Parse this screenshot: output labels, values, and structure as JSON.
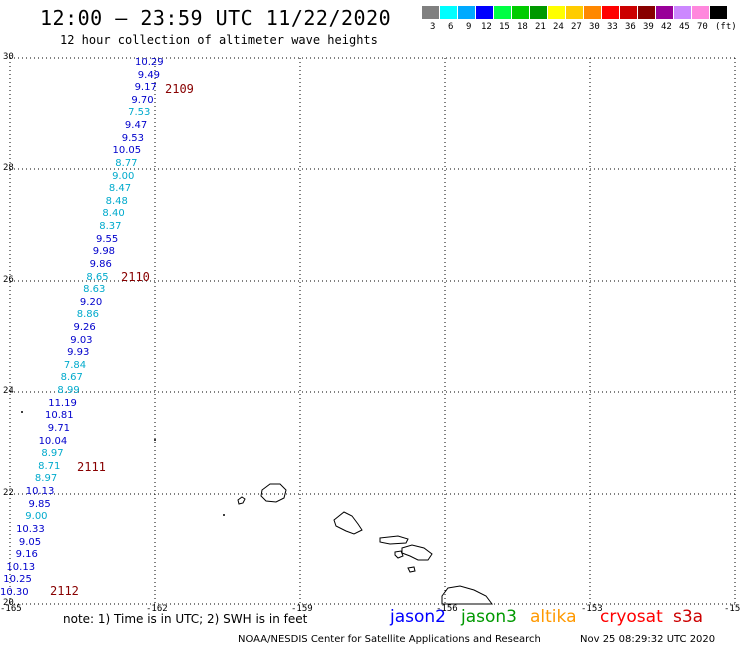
{
  "title": "12:00 – 23:59 UTC 11/22/2020",
  "subtitle": "12 hour collection of altimeter wave heights",
  "legend": {
    "unit": "(ft)",
    "bins": [
      {
        "label": "3",
        "color": "#808080"
      },
      {
        "label": "6",
        "color": "#00ffff"
      },
      {
        "label": "9",
        "color": "#00aaff"
      },
      {
        "label": "12",
        "color": "#0000ff"
      },
      {
        "label": "15",
        "color": "#00ff44"
      },
      {
        "label": "18",
        "color": "#00cc00"
      },
      {
        "label": "21",
        "color": "#009900"
      },
      {
        "label": "24",
        "color": "#ffff00"
      },
      {
        "label": "27",
        "color": "#ffcc00"
      },
      {
        "label": "30",
        "color": "#ff8800"
      },
      {
        "label": "33",
        "color": "#ff0000"
      },
      {
        "label": "36",
        "color": "#cc0000"
      },
      {
        "label": "39",
        "color": "#880000"
      },
      {
        "label": "42",
        "color": "#990099"
      },
      {
        "label": "45",
        "color": "#cc88ff"
      },
      {
        "label": "70",
        "color": "#ff88dd"
      },
      {
        "label": "",
        "color": "#000000"
      }
    ]
  },
  "map": {
    "lat_labels": [
      "30",
      "28",
      "26",
      "24",
      "22",
      "20"
    ],
    "lon_labels": [
      "-165",
      "-162",
      "-159",
      "-156",
      "-153",
      "-15"
    ],
    "lat_range": [
      20,
      30
    ],
    "lon_range": [
      -165,
      -150
    ]
  },
  "passes": [
    {
      "label": "2109",
      "color": "#880000"
    },
    {
      "label": "2110",
      "color": "#880000"
    },
    {
      "label": "2111",
      "color": "#880000"
    },
    {
      "label": "2112",
      "color": "#880000"
    }
  ],
  "observations": [
    {
      "value": "10.29",
      "color": "#0000cc"
    },
    {
      "value": "9.49",
      "color": "#0000cc"
    },
    {
      "value": "9.17",
      "color": "#0000cc"
    },
    {
      "value": "9.70",
      "color": "#0000cc"
    },
    {
      "value": "7.53",
      "color": "#00aacc"
    },
    {
      "value": "9.47",
      "color": "#0000cc"
    },
    {
      "value": "9.53",
      "color": "#0000cc"
    },
    {
      "value": "10.05",
      "color": "#0000cc"
    },
    {
      "value": "8.77",
      "color": "#00aacc"
    },
    {
      "value": "9.00",
      "color": "#00aacc"
    },
    {
      "value": "8.47",
      "color": "#00aacc"
    },
    {
      "value": "8.48",
      "color": "#00aacc"
    },
    {
      "value": "8.40",
      "color": "#00aacc"
    },
    {
      "value": "8.37",
      "color": "#00aacc"
    },
    {
      "value": "9.55",
      "color": "#0000cc"
    },
    {
      "value": "9.98",
      "color": "#0000cc"
    },
    {
      "value": "9.86",
      "color": "#0000cc"
    },
    {
      "value": "8.65",
      "color": "#00aacc"
    },
    {
      "value": "8.63",
      "color": "#00aacc"
    },
    {
      "value": "9.20",
      "color": "#0000cc"
    },
    {
      "value": "8.86",
      "color": "#00aacc"
    },
    {
      "value": "9.26",
      "color": "#0000cc"
    },
    {
      "value": "9.03",
      "color": "#0000cc"
    },
    {
      "value": "9.93",
      "color": "#0000cc"
    },
    {
      "value": "7.84",
      "color": "#00aacc"
    },
    {
      "value": "8.67",
      "color": "#00aacc"
    },
    {
      "value": "8.99",
      "color": "#00aacc"
    },
    {
      "value": "11.19",
      "color": "#0000cc"
    },
    {
      "value": "10.81",
      "color": "#0000cc"
    },
    {
      "value": "9.71",
      "color": "#0000cc"
    },
    {
      "value": "10.04",
      "color": "#0000cc"
    },
    {
      "value": "8.97",
      "color": "#00aacc"
    },
    {
      "value": "8.71",
      "color": "#00aacc"
    },
    {
      "value": "8.97",
      "color": "#00aacc"
    },
    {
      "value": "10.13",
      "color": "#0000cc"
    },
    {
      "value": "9.85",
      "color": "#0000cc"
    },
    {
      "value": "9.00",
      "color": "#00aacc"
    },
    {
      "value": "10.33",
      "color": "#0000cc"
    },
    {
      "value": "9.05",
      "color": "#0000cc"
    },
    {
      "value": "9.16",
      "color": "#0000cc"
    },
    {
      "value": "10.13",
      "color": "#0000cc"
    },
    {
      "value": "10.25",
      "color": "#0000cc"
    },
    {
      "value": "10.30",
      "color": "#0000cc"
    }
  ],
  "footer": {
    "note": "note: 1) Time is in UTC; 2) SWH is in feet",
    "satellites": [
      {
        "name": "jason2",
        "color": "#0000ff"
      },
      {
        "name": "jason3",
        "color": "#009900"
      },
      {
        "name": "altika",
        "color": "#ff9900"
      },
      {
        "name": "cryosat",
        "color": "#ff0000"
      },
      {
        "name": "s3a",
        "color": "#cc0000"
      }
    ],
    "credit": "NOAA/NESDIS Center for Satellite Applications and Research",
    "timestamp": "Nov 25 08:29:32 UTC 2020"
  }
}
